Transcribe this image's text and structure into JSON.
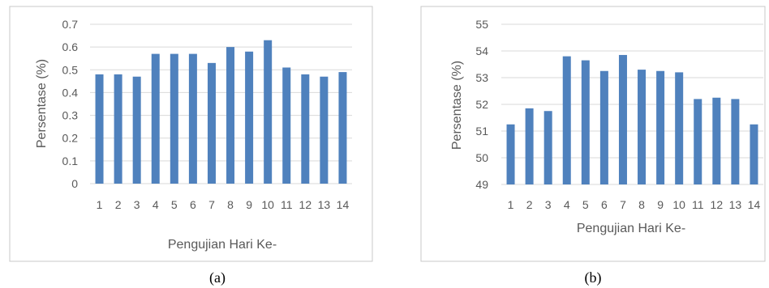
{
  "colors": {
    "bar": "#4f81bd",
    "grid": "#d9d9d9",
    "text": "#595959",
    "border": "#c8c8c8"
  },
  "chart_data": [
    {
      "type": "bar",
      "caption": "(a)",
      "categories": [
        "1",
        "2",
        "3",
        "4",
        "5",
        "6",
        "7",
        "8",
        "9",
        "10",
        "11",
        "12",
        "13",
        "14"
      ],
      "values": [
        0.48,
        0.48,
        0.47,
        0.57,
        0.57,
        0.57,
        0.53,
        0.6,
        0.58,
        0.63,
        0.51,
        0.48,
        0.47,
        0.49
      ],
      "ylim": [
        0,
        0.7
      ],
      "yticks": [
        "0",
        "0.1",
        "0.2",
        "0.3",
        "0.4",
        "0.5",
        "0.6",
        "0.7"
      ],
      "xlabel": "Pengujian Hari Ke-",
      "ylabel": "Persentase (%)",
      "grid": true
    },
    {
      "type": "bar",
      "caption": "(b)",
      "categories": [
        "1",
        "2",
        "3",
        "4",
        "5",
        "6",
        "7",
        "8",
        "9",
        "10",
        "11",
        "12",
        "13",
        "14"
      ],
      "values": [
        51.25,
        51.85,
        51.75,
        53.8,
        53.65,
        53.25,
        53.85,
        53.3,
        53.25,
        53.2,
        52.2,
        52.25,
        52.2,
        51.25
      ],
      "ylim": [
        49,
        55
      ],
      "yticks": [
        "49",
        "50",
        "51",
        "52",
        "53",
        "54",
        "55"
      ],
      "xlabel": "Pengujian Hari Ke-",
      "ylabel": "Persentase (%)",
      "grid": true
    }
  ]
}
